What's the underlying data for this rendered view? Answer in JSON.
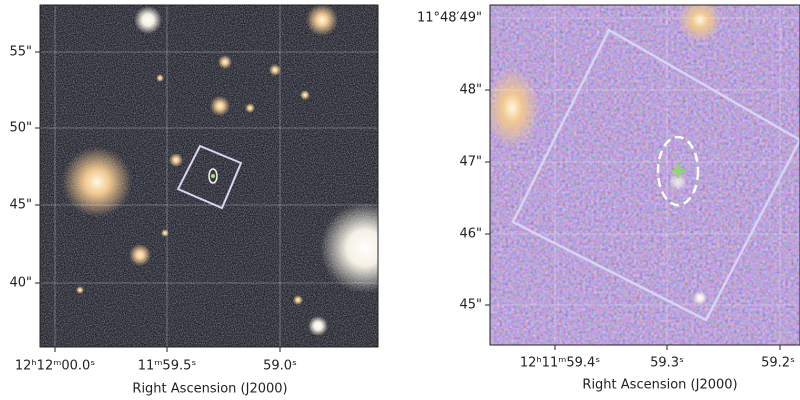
{
  "panels": [
    {
      "yticks": [
        "55\"",
        "50\"",
        "45\"",
        "40\""
      ],
      "xticks": [
        "12ʰ12ᵐ00.0ˢ",
        "11ᵐ59.5ˢ",
        "59.0ˢ"
      ],
      "xlabel": "Right Ascension (J2000)"
    },
    {
      "yticks": [
        "11°48′49\"",
        "48\"",
        "47\"",
        "46\"",
        "45\""
      ],
      "xticks": [
        "12ʰ11ᵐ59.4ˢ",
        "59.3ˢ",
        "59.2ˢ"
      ],
      "xlabel": "Right Ascension (J2000)"
    }
  ]
}
